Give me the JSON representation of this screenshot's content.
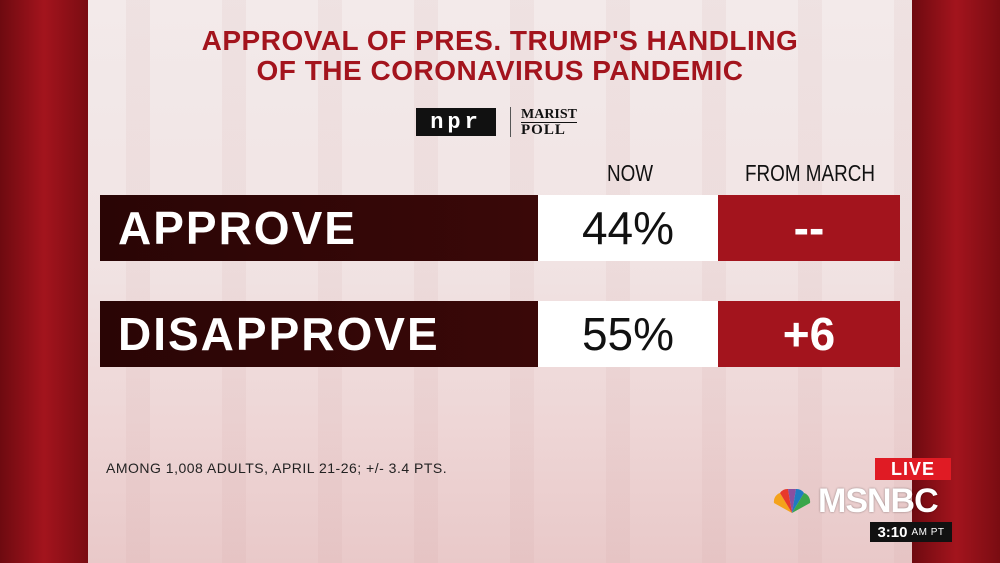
{
  "title": {
    "line1": "APPROVAL OF PRES. TRUMP'S HANDLING",
    "line2": "OF THE CORONAVIRUS PANDEMIC"
  },
  "logos": {
    "npr": "npr",
    "marist_line1": "MARIST",
    "marist_line2": "POLL"
  },
  "columns": {
    "now": "NOW",
    "from_march": "FROM MARCH"
  },
  "rows": [
    {
      "label": "APPROVE",
      "now": "44%",
      "from_march": "--"
    },
    {
      "label": "DISAPPROVE",
      "now": "55%",
      "from_march": "+6"
    }
  ],
  "footnote": "AMONG 1,008 ADULTS, APRIL 21-26; +/- 3.4 PTS.",
  "broadcast": {
    "live": "LIVE",
    "network": "MSNBC",
    "time": "3:10",
    "time_suffix": "AM PT"
  },
  "colors": {
    "accent_red": "#a3141d",
    "dark_label": "#2a0505",
    "live_red": "#e01b24"
  }
}
